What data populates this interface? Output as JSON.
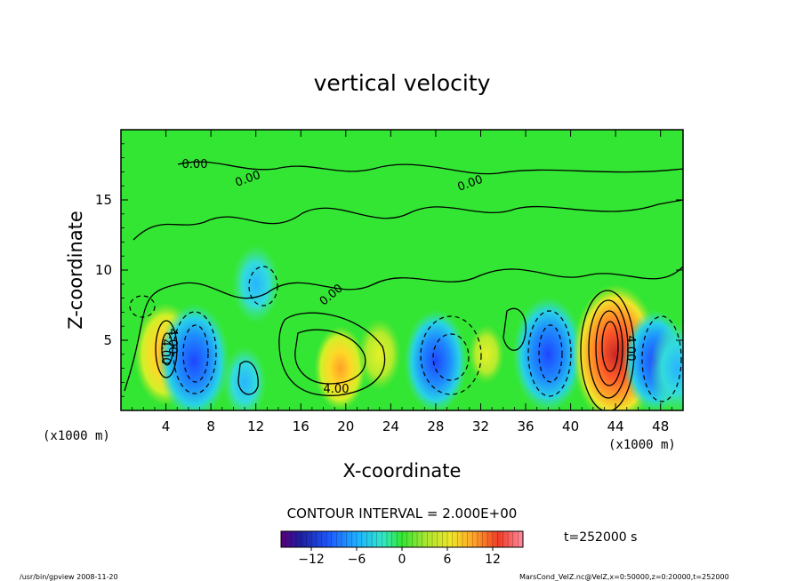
{
  "chart_data": {
    "type": "heatmap",
    "title": "vertical velocity",
    "xlabel": "X-coordinate",
    "ylabel": "Z-coordinate",
    "x_unit_left": "(x1000 m)",
    "x_unit_right": "(x1000 m)",
    "xlim": [
      0,
      50
    ],
    "ylim": [
      0,
      20
    ],
    "xticks": [
      "4",
      "8",
      "12",
      "16",
      "20",
      "24",
      "28",
      "32",
      "36",
      "40",
      "44",
      "48"
    ],
    "yticks": [
      "5",
      "10",
      "15"
    ],
    "contour_interval_label": "CONTOUR INTERVAL = 2.000E+00",
    "time_label": "t=252000 s",
    "colorbar": {
      "ticks": [
        "−12",
        "−6",
        "0",
        "6",
        "12"
      ],
      "range": [
        -16,
        16
      ]
    },
    "contour_labels": [
      "0.00",
      "0.00",
      "0.00",
      "0.00",
      "4.00",
      "4.00",
      "4.00",
      "4.00"
    ],
    "cells": [
      {
        "x": 4,
        "z": 4,
        "w": 8
      },
      {
        "x": 6.5,
        "z": 3.5,
        "w": -10
      },
      {
        "x": 11,
        "z": 2,
        "w": -3
      },
      {
        "x": 12,
        "z": 9,
        "w": -4
      },
      {
        "x": 19.5,
        "z": 3,
        "w": 5
      },
      {
        "x": 23,
        "z": 4,
        "w": 3
      },
      {
        "x": 28,
        "z": 3.5,
        "w": -8
      },
      {
        "x": 32.5,
        "z": 4,
        "w": 1
      },
      {
        "x": 38,
        "z": 4,
        "w": -10
      },
      {
        "x": 44,
        "z": 4,
        "w": 14
      },
      {
        "x": 47.5,
        "z": 3.5,
        "w": -8
      },
      {
        "x": 49.5,
        "z": 3,
        "w": -6
      }
    ]
  },
  "footer": {
    "program": "/usr/bin/gpview   2008-11-20",
    "source": "MarsCond_VelZ.nc@VelZ,x=0:50000,z=0:20000,t=252000"
  },
  "colors": {
    "background_field": "#33e633",
    "frame": "#000000"
  }
}
